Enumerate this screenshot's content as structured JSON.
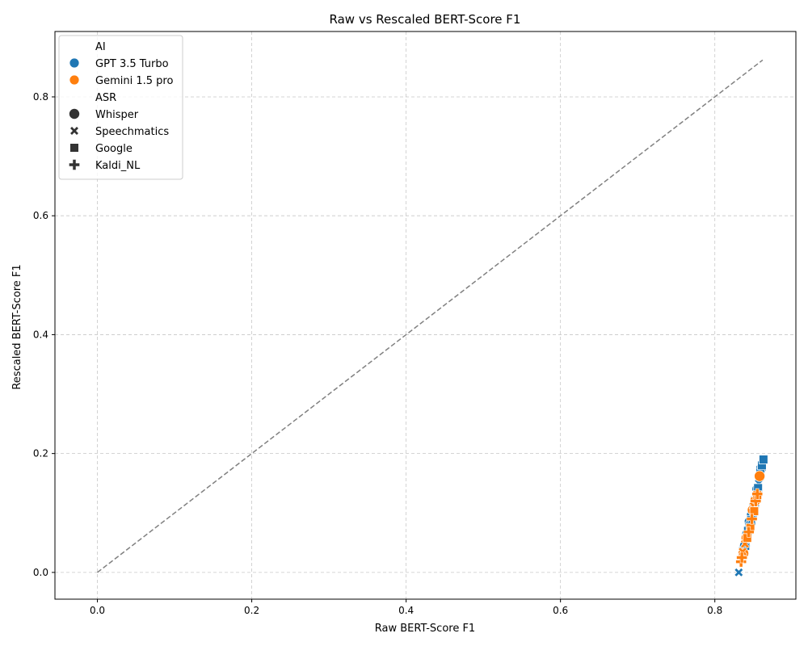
{
  "chart_data": {
    "type": "scatter",
    "title": "Raw vs Rescaled BERT-Score F1",
    "xlabel": "Raw BERT-Score F1",
    "ylabel": "Rescaled BERT-Score F1",
    "xlim": [
      -0.055,
      0.905
    ],
    "ylim": [
      -0.045,
      0.91
    ],
    "xticks": [
      0.0,
      0.2,
      0.4,
      0.6,
      0.8
    ],
    "yticks": [
      0.0,
      0.2,
      0.4,
      0.6,
      0.8
    ],
    "xtick_labels": [
      "0.0",
      "0.2",
      "0.4",
      "0.6",
      "0.8"
    ],
    "ytick_labels": [
      "0.0",
      "0.2",
      "0.4",
      "0.6",
      "0.8"
    ],
    "grid": true,
    "reference_line": {
      "style": "dashed",
      "color": "#808080",
      "from": [
        0.0,
        0.0
      ],
      "to": [
        0.862,
        0.862
      ]
    },
    "legend": {
      "placement": "top-left",
      "hue_title": "AI",
      "hue_entries": [
        {
          "name": "GPT 3.5 Turbo",
          "color": "#1f77b4"
        },
        {
          "name": "Gemini 1.5 pro",
          "color": "#ff7f0e"
        }
      ],
      "style_title": "ASR",
      "style_entries": [
        {
          "name": "Whisper",
          "marker": "circle"
        },
        {
          "name": "Speechmatics",
          "marker": "x"
        },
        {
          "name": "Google",
          "marker": "square"
        },
        {
          "name": "Kaldi_NL",
          "marker": "plus"
        }
      ]
    },
    "series": [
      {
        "ai": "GPT 3.5 Turbo",
        "asr": "Whisper",
        "color": "#1f77b4",
        "marker": "circle",
        "points": [
          [
            0.839,
            0.045
          ],
          [
            0.842,
            0.065
          ],
          [
            0.845,
            0.085
          ],
          [
            0.848,
            0.097
          ],
          [
            0.851,
            0.112
          ],
          [
            0.855,
            0.14
          ],
          [
            0.858,
            0.16
          ],
          [
            0.86,
            0.175
          ]
        ]
      },
      {
        "ai": "GPT 3.5 Turbo",
        "asr": "Speechmatics",
        "color": "#1f77b4",
        "marker": "x",
        "points": [
          [
            0.831,
            0.0
          ],
          [
            0.84,
            0.05
          ],
          [
            0.844,
            0.075
          ],
          [
            0.85,
            0.108
          ],
          [
            0.853,
            0.128
          ],
          [
            0.857,
            0.15
          ]
        ]
      },
      {
        "ai": "GPT 3.5 Turbo",
        "asr": "Google",
        "color": "#1f77b4",
        "marker": "square",
        "points": [
          [
            0.843,
            0.07
          ],
          [
            0.847,
            0.088
          ],
          [
            0.852,
            0.118
          ],
          [
            0.856,
            0.142
          ],
          [
            0.859,
            0.168
          ],
          [
            0.861,
            0.18
          ],
          [
            0.863,
            0.19
          ]
        ]
      },
      {
        "ai": "GPT 3.5 Turbo",
        "asr": "Kaldi_NL",
        "color": "#1f77b4",
        "marker": "plus",
        "points": [
          [
            0.838,
            0.04
          ],
          [
            0.846,
            0.082
          ],
          [
            0.853,
            0.125
          ]
        ]
      },
      {
        "ai": "Gemini 1.5 pro",
        "asr": "Whisper",
        "color": "#ff7f0e",
        "marker": "circle",
        "points": [
          [
            0.837,
            0.032
          ],
          [
            0.841,
            0.058
          ],
          [
            0.849,
            0.105
          ],
          [
            0.852,
            0.12
          ],
          [
            0.858,
            0.162
          ]
        ]
      },
      {
        "ai": "Gemini 1.5 pro",
        "asr": "Speechmatics",
        "color": "#ff7f0e",
        "marker": "x",
        "points": [
          [
            0.836,
            0.035
          ],
          [
            0.839,
            0.048
          ],
          [
            0.85,
            0.112
          ]
        ]
      },
      {
        "ai": "Gemini 1.5 pro",
        "asr": "Google",
        "color": "#ff7f0e",
        "marker": "square",
        "points": [
          [
            0.842,
            0.058
          ],
          [
            0.846,
            0.075
          ],
          [
            0.851,
            0.103
          ],
          [
            0.855,
            0.13
          ]
        ]
      },
      {
        "ai": "Gemini 1.5 pro",
        "asr": "Kaldi_NL",
        "color": "#ff7f0e",
        "marker": "plus",
        "points": [
          [
            0.834,
            0.018
          ],
          [
            0.835,
            0.025
          ],
          [
            0.844,
            0.068
          ],
          [
            0.848,
            0.09
          ],
          [
            0.853,
            0.12
          ],
          [
            0.855,
            0.132
          ]
        ]
      }
    ]
  }
}
